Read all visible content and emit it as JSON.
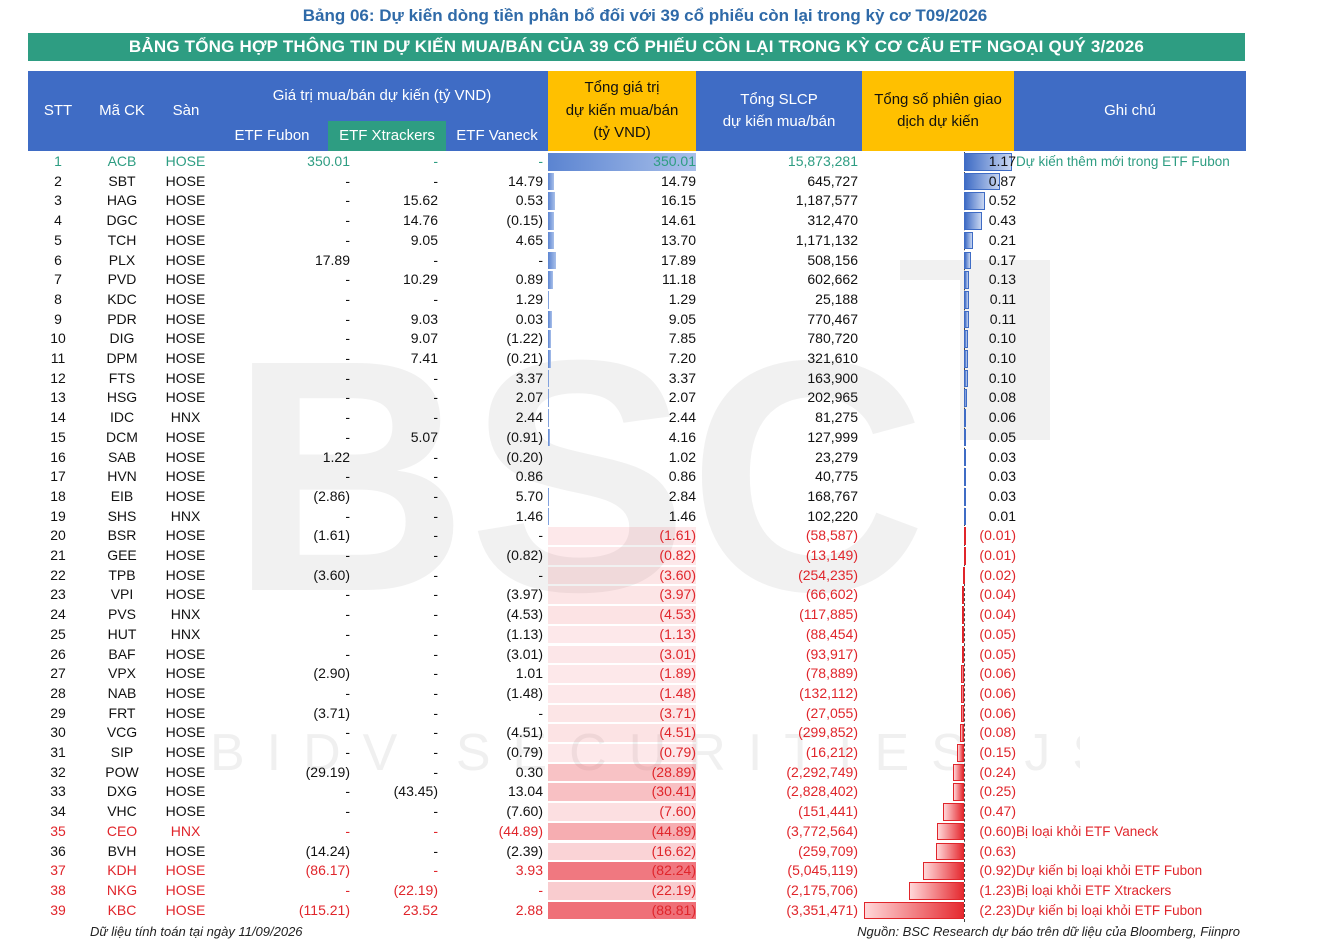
{
  "caption": "Bảng 06: Dự kiến dòng tiền phân bổ đối với 39 cổ phiếu còn lại trong kỳ cơ T09/2026",
  "banner": "BẢNG TỔNG HỢP THÔNG TIN DỰ KIẾN MUA/BÁN CỦA 39 CỔ PHIẾU CÒN LẠI TRONG KỲ CƠ CẤU ETF NGOẠI QUÝ 3/2026",
  "watermark": {
    "logo": "BSC",
    "sub": "BIDV SECURITIES JSC"
  },
  "headers": {
    "stt": "STT",
    "ma": "Mã CK",
    "san": "Sàn",
    "group": "Giá trị mua/bán dự kiến (tỷ VND)",
    "fubon": "ETF Fubon",
    "xtrackers": "ETF Xtrackers",
    "vaneck": "ETF Vaneck",
    "total_1": "Tổng giá trị",
    "total_2": "dự kiến mua/bán",
    "total_3": "(tỷ VND)",
    "slcp_1": "Tổng SLCP",
    "slcp_2": "dự kiến mua/bán",
    "sessions_1": "Tổng số phiên giao",
    "sessions_2": "dịch dự kiến",
    "note": "Ghi chú"
  },
  "colors": {
    "header_blue": "#3f6cc5",
    "header_yellow": "#ffc000",
    "banner_green": "#2e9d82",
    "negative_red": "#e0252b",
    "positive_bar": "#4a78c8"
  },
  "rows": [
    {
      "stt": "1",
      "ma": "ACB",
      "san": "HOSE",
      "fubon": "350.01",
      "xtrackers": "-",
      "vaneck": "-",
      "total": "350.01",
      "total_num": 350.01,
      "slcp": "15,873,281",
      "sessions": "1.17",
      "sessions_num": 1.17,
      "note": "Dự kiến thêm mới trong ETF Fubon",
      "style": "teal"
    },
    {
      "stt": "2",
      "ma": "SBT",
      "san": "HOSE",
      "fubon": "-",
      "xtrackers": "-",
      "vaneck": "14.79",
      "total": "14.79",
      "total_num": 14.79,
      "slcp": "645,727",
      "sessions": "0.87",
      "sessions_num": 0.87,
      "note": "",
      "style": ""
    },
    {
      "stt": "3",
      "ma": "HAG",
      "san": "HOSE",
      "fubon": "-",
      "xtrackers": "15.62",
      "vaneck": "0.53",
      "total": "16.15",
      "total_num": 16.15,
      "slcp": "1,187,577",
      "sessions": "0.52",
      "sessions_num": 0.52,
      "note": "",
      "style": ""
    },
    {
      "stt": "4",
      "ma": "DGC",
      "san": "HOSE",
      "fubon": "-",
      "xtrackers": "14.76",
      "vaneck": "(0.15)",
      "total": "14.61",
      "total_num": 14.61,
      "slcp": "312,470",
      "sessions": "0.43",
      "sessions_num": 0.43,
      "note": "",
      "style": ""
    },
    {
      "stt": "5",
      "ma": "TCH",
      "san": "HOSE",
      "fubon": "-",
      "xtrackers": "9.05",
      "vaneck": "4.65",
      "total": "13.70",
      "total_num": 13.7,
      "slcp": "1,171,132",
      "sessions": "0.21",
      "sessions_num": 0.21,
      "note": "",
      "style": ""
    },
    {
      "stt": "6",
      "ma": "PLX",
      "san": "HOSE",
      "fubon": "17.89",
      "xtrackers": "-",
      "vaneck": "-",
      "total": "17.89",
      "total_num": 17.89,
      "slcp": "508,156",
      "sessions": "0.17",
      "sessions_num": 0.17,
      "note": "",
      "style": ""
    },
    {
      "stt": "7",
      "ma": "PVD",
      "san": "HOSE",
      "fubon": "-",
      "xtrackers": "10.29",
      "vaneck": "0.89",
      "total": "11.18",
      "total_num": 11.18,
      "slcp": "602,662",
      "sessions": "0.13",
      "sessions_num": 0.13,
      "note": "",
      "style": ""
    },
    {
      "stt": "8",
      "ma": "KDC",
      "san": "HOSE",
      "fubon": "-",
      "xtrackers": "-",
      "vaneck": "1.29",
      "total": "1.29",
      "total_num": 1.29,
      "slcp": "25,188",
      "sessions": "0.11",
      "sessions_num": 0.11,
      "note": "",
      "style": ""
    },
    {
      "stt": "9",
      "ma": "PDR",
      "san": "HOSE",
      "fubon": "-",
      "xtrackers": "9.03",
      "vaneck": "0.03",
      "total": "9.05",
      "total_num": 9.05,
      "slcp": "770,467",
      "sessions": "0.11",
      "sessions_num": 0.11,
      "note": "",
      "style": ""
    },
    {
      "stt": "10",
      "ma": "DIG",
      "san": "HOSE",
      "fubon": "-",
      "xtrackers": "9.07",
      "vaneck": "(1.22)",
      "total": "7.85",
      "total_num": 7.85,
      "slcp": "780,720",
      "sessions": "0.10",
      "sessions_num": 0.1,
      "note": "",
      "style": ""
    },
    {
      "stt": "11",
      "ma": "DPM",
      "san": "HOSE",
      "fubon": "-",
      "xtrackers": "7.41",
      "vaneck": "(0.21)",
      "total": "7.20",
      "total_num": 7.2,
      "slcp": "321,610",
      "sessions": "0.10",
      "sessions_num": 0.1,
      "note": "",
      "style": ""
    },
    {
      "stt": "12",
      "ma": "FTS",
      "san": "HOSE",
      "fubon": "-",
      "xtrackers": "-",
      "vaneck": "3.37",
      "total": "3.37",
      "total_num": 3.37,
      "slcp": "163,900",
      "sessions": "0.10",
      "sessions_num": 0.1,
      "note": "",
      "style": ""
    },
    {
      "stt": "13",
      "ma": "HSG",
      "san": "HOSE",
      "fubon": "-",
      "xtrackers": "-",
      "vaneck": "2.07",
      "total": "2.07",
      "total_num": 2.07,
      "slcp": "202,965",
      "sessions": "0.08",
      "sessions_num": 0.08,
      "note": "",
      "style": ""
    },
    {
      "stt": "14",
      "ma": "IDC",
      "san": "HNX",
      "fubon": "-",
      "xtrackers": "-",
      "vaneck": "2.44",
      "total": "2.44",
      "total_num": 2.44,
      "slcp": "81,275",
      "sessions": "0.06",
      "sessions_num": 0.06,
      "note": "",
      "style": ""
    },
    {
      "stt": "15",
      "ma": "DCM",
      "san": "HOSE",
      "fubon": "-",
      "xtrackers": "5.07",
      "vaneck": "(0.91)",
      "total": "4.16",
      "total_num": 4.16,
      "slcp": "127,999",
      "sessions": "0.05",
      "sessions_num": 0.05,
      "note": "",
      "style": ""
    },
    {
      "stt": "16",
      "ma": "SAB",
      "san": "HOSE",
      "fubon": "1.22",
      "xtrackers": "-",
      "vaneck": "(0.20)",
      "total": "1.02",
      "total_num": 1.02,
      "slcp": "23,279",
      "sessions": "0.03",
      "sessions_num": 0.03,
      "note": "",
      "style": ""
    },
    {
      "stt": "17",
      "ma": "HVN",
      "san": "HOSE",
      "fubon": "-",
      "xtrackers": "-",
      "vaneck": "0.86",
      "total": "0.86",
      "total_num": 0.86,
      "slcp": "40,775",
      "sessions": "0.03",
      "sessions_num": 0.03,
      "note": "",
      "style": ""
    },
    {
      "stt": "18",
      "ma": "EIB",
      "san": "HOSE",
      "fubon": "(2.86)",
      "xtrackers": "-",
      "vaneck": "5.70",
      "total": "2.84",
      "total_num": 2.84,
      "slcp": "168,767",
      "sessions": "0.03",
      "sessions_num": 0.03,
      "note": "",
      "style": ""
    },
    {
      "stt": "19",
      "ma": "SHS",
      "san": "HNX",
      "fubon": "-",
      "xtrackers": "-",
      "vaneck": "1.46",
      "total": "1.46",
      "total_num": 1.46,
      "slcp": "102,220",
      "sessions": "0.01",
      "sessions_num": 0.01,
      "note": "",
      "style": ""
    },
    {
      "stt": "20",
      "ma": "BSR",
      "san": "HOSE",
      "fubon": "(1.61)",
      "xtrackers": "-",
      "vaneck": "-",
      "total": "(1.61)",
      "total_num": -1.61,
      "slcp": "(58,587)",
      "sessions": "(0.01)",
      "sessions_num": -0.01,
      "note": "",
      "style": ""
    },
    {
      "stt": "21",
      "ma": "GEE",
      "san": "HOSE",
      "fubon": "-",
      "xtrackers": "-",
      "vaneck": "(0.82)",
      "total": "(0.82)",
      "total_num": -0.82,
      "slcp": "(13,149)",
      "sessions": "(0.01)",
      "sessions_num": -0.01,
      "note": "",
      "style": ""
    },
    {
      "stt": "22",
      "ma": "TPB",
      "san": "HOSE",
      "fubon": "(3.60)",
      "xtrackers": "-",
      "vaneck": "-",
      "total": "(3.60)",
      "total_num": -3.6,
      "slcp": "(254,235)",
      "sessions": "(0.02)",
      "sessions_num": -0.02,
      "note": "",
      "style": ""
    },
    {
      "stt": "23",
      "ma": "VPI",
      "san": "HOSE",
      "fubon": "-",
      "xtrackers": "-",
      "vaneck": "(3.97)",
      "total": "(3.97)",
      "total_num": -3.97,
      "slcp": "(66,602)",
      "sessions": "(0.04)",
      "sessions_num": -0.04,
      "note": "",
      "style": ""
    },
    {
      "stt": "24",
      "ma": "PVS",
      "san": "HNX",
      "fubon": "-",
      "xtrackers": "-",
      "vaneck": "(4.53)",
      "total": "(4.53)",
      "total_num": -4.53,
      "slcp": "(117,885)",
      "sessions": "(0.04)",
      "sessions_num": -0.04,
      "note": "",
      "style": ""
    },
    {
      "stt": "25",
      "ma": "HUT",
      "san": "HNX",
      "fubon": "-",
      "xtrackers": "-",
      "vaneck": "(1.13)",
      "total": "(1.13)",
      "total_num": -1.13,
      "slcp": "(88,454)",
      "sessions": "(0.05)",
      "sessions_num": -0.05,
      "note": "",
      "style": ""
    },
    {
      "stt": "26",
      "ma": "BAF",
      "san": "HOSE",
      "fubon": "-",
      "xtrackers": "-",
      "vaneck": "(3.01)",
      "total": "(3.01)",
      "total_num": -3.01,
      "slcp": "(93,917)",
      "sessions": "(0.05)",
      "sessions_num": -0.05,
      "note": "",
      "style": ""
    },
    {
      "stt": "27",
      "ma": "VPX",
      "san": "HOSE",
      "fubon": "(2.90)",
      "xtrackers": "-",
      "vaneck": "1.01",
      "total": "(1.89)",
      "total_num": -1.89,
      "slcp": "(78,889)",
      "sessions": "(0.06)",
      "sessions_num": -0.06,
      "note": "",
      "style": ""
    },
    {
      "stt": "28",
      "ma": "NAB",
      "san": "HOSE",
      "fubon": "-",
      "xtrackers": "-",
      "vaneck": "(1.48)",
      "total": "(1.48)",
      "total_num": -1.48,
      "slcp": "(132,112)",
      "sessions": "(0.06)",
      "sessions_num": -0.06,
      "note": "",
      "style": ""
    },
    {
      "stt": "29",
      "ma": "FRT",
      "san": "HOSE",
      "fubon": "(3.71)",
      "xtrackers": "-",
      "vaneck": "-",
      "total": "(3.71)",
      "total_num": -3.71,
      "slcp": "(27,055)",
      "sessions": "(0.06)",
      "sessions_num": -0.06,
      "note": "",
      "style": ""
    },
    {
      "stt": "30",
      "ma": "VCG",
      "san": "HOSE",
      "fubon": "-",
      "xtrackers": "-",
      "vaneck": "(4.51)",
      "total": "(4.51)",
      "total_num": -4.51,
      "slcp": "(299,852)",
      "sessions": "(0.08)",
      "sessions_num": -0.08,
      "note": "",
      "style": ""
    },
    {
      "stt": "31",
      "ma": "SIP",
      "san": "HOSE",
      "fubon": "-",
      "xtrackers": "-",
      "vaneck": "(0.79)",
      "total": "(0.79)",
      "total_num": -0.79,
      "slcp": "(16,212)",
      "sessions": "(0.15)",
      "sessions_num": -0.15,
      "note": "",
      "style": ""
    },
    {
      "stt": "32",
      "ma": "POW",
      "san": "HOSE",
      "fubon": "(29.19)",
      "xtrackers": "-",
      "vaneck": "0.30",
      "total": "(28.89)",
      "total_num": -28.89,
      "slcp": "(2,292,749)",
      "sessions": "(0.24)",
      "sessions_num": -0.24,
      "note": "",
      "style": ""
    },
    {
      "stt": "33",
      "ma": "DXG",
      "san": "HOSE",
      "fubon": "-",
      "xtrackers": "(43.45)",
      "vaneck": "13.04",
      "total": "(30.41)",
      "total_num": -30.41,
      "slcp": "(2,828,402)",
      "sessions": "(0.25)",
      "sessions_num": -0.25,
      "note": "",
      "style": ""
    },
    {
      "stt": "34",
      "ma": "VHC",
      "san": "HOSE",
      "fubon": "-",
      "xtrackers": "-",
      "vaneck": "(7.60)",
      "total": "(7.60)",
      "total_num": -7.6,
      "slcp": "(151,441)",
      "sessions": "(0.47)",
      "sessions_num": -0.47,
      "note": "",
      "style": ""
    },
    {
      "stt": "35",
      "ma": "CEO",
      "san": "HNX",
      "fubon": "-",
      "xtrackers": "-",
      "vaneck": "(44.89)",
      "total": "(44.89)",
      "total_num": -44.89,
      "slcp": "(3,772,564)",
      "sessions": "(0.60)",
      "sessions_num": -0.6,
      "note": "Bị loại khỏi ETF Vaneck",
      "style": "red"
    },
    {
      "stt": "36",
      "ma": "BVH",
      "san": "HOSE",
      "fubon": "(14.24)",
      "xtrackers": "-",
      "vaneck": "(2.39)",
      "total": "(16.62)",
      "total_num": -16.62,
      "slcp": "(259,709)",
      "sessions": "(0.63)",
      "sessions_num": -0.63,
      "note": "",
      "style": ""
    },
    {
      "stt": "37",
      "ma": "KDH",
      "san": "HOSE",
      "fubon": "(86.17)",
      "xtrackers": "-",
      "vaneck": "3.93",
      "total": "(82.24)",
      "total_num": -82.24,
      "slcp": "(5,045,119)",
      "sessions": "(0.92)",
      "sessions_num": -0.92,
      "note": "Dự kiến bị loại khỏi ETF Fubon",
      "style": "red"
    },
    {
      "stt": "38",
      "ma": "NKG",
      "san": "HOSE",
      "fubon": "-",
      "xtrackers": "(22.19)",
      "vaneck": "-",
      "total": "(22.19)",
      "total_num": -22.19,
      "slcp": "(2,175,706)",
      "sessions": "(1.23)",
      "sessions_num": -1.23,
      "note": "Bị loại khỏi ETF Xtrackers",
      "style": "red"
    },
    {
      "stt": "39",
      "ma": "KBC",
      "san": "HOSE",
      "fubon": "(115.21)",
      "xtrackers": "23.52",
      "vaneck": "2.88",
      "total": "(88.81)",
      "total_num": -88.81,
      "slcp": "(3,351,471)",
      "sessions": "(2.23)",
      "sessions_num": -2.23,
      "note": "Dự kiến bị loại khỏi ETF Fubon",
      "style": "red"
    }
  ],
  "footer_left": "Dữ liệu tính toán tại ngày 11/09/2026",
  "footer_right": "Nguồn: BSC Research dự báo trên dữ liệu của Bloomberg, Fiinpro"
}
